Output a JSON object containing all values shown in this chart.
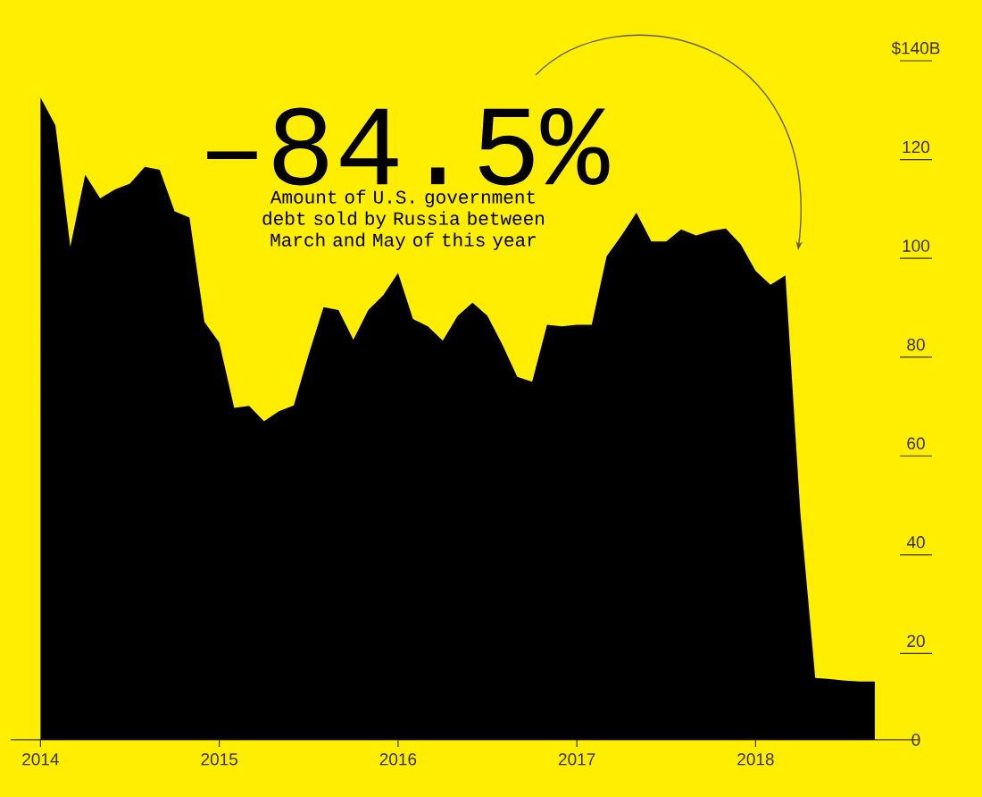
{
  "chart_data": {
    "type": "area",
    "x": [
      "2014-01",
      "2014-02",
      "2014-03",
      "2014-04",
      "2014-05",
      "2014-06",
      "2014-07",
      "2014-08",
      "2014-09",
      "2014-10",
      "2014-11",
      "2014-12",
      "2015-01",
      "2015-02",
      "2015-03",
      "2015-04",
      "2015-05",
      "2015-06",
      "2015-07",
      "2015-08",
      "2015-09",
      "2015-10",
      "2015-11",
      "2015-12",
      "2016-01",
      "2016-02",
      "2016-03",
      "2016-04",
      "2016-05",
      "2016-06",
      "2016-07",
      "2016-08",
      "2016-09",
      "2016-10",
      "2016-11",
      "2016-12",
      "2017-01",
      "2017-02",
      "2017-03",
      "2017-04",
      "2017-05",
      "2017-06",
      "2017-07",
      "2017-08",
      "2017-09",
      "2017-10",
      "2017-11",
      "2017-12",
      "2018-01",
      "2018-02",
      "2018-03",
      "2018-04",
      "2018-05",
      "2018-06",
      "2018-07",
      "2018-08",
      "2018-09"
    ],
    "series": [
      {
        "color": "#000000",
        "values": [
          130,
          124.4,
          99.8,
          114.4,
          109.6,
          111.4,
          112.6,
          116,
          115.4,
          107,
          105.7,
          84.6,
          80.4,
          67.2,
          67.6,
          64.5,
          66.5,
          67.7,
          78,
          87.6,
          87,
          81,
          87,
          90,
          94.5,
          85.2,
          83.7,
          80.8,
          85.8,
          88.5,
          85.8,
          80,
          73.5,
          72.5,
          84,
          83.7,
          84,
          84,
          97.9,
          102.1,
          106.7,
          100.9,
          100.9,
          103.3,
          102.1,
          103,
          103.5,
          100.3,
          94.9,
          92.1,
          94,
          46,
          12.5,
          12.3,
          12,
          11.8,
          11.8
        ]
      }
    ],
    "xlim": [
      "2013-11",
      "2018-12"
    ],
    "xticks": [
      {
        "value": "2014",
        "label": "2014"
      },
      {
        "value": "2015",
        "label": "2015"
      },
      {
        "value": "2016",
        "label": "2016"
      },
      {
        "value": "2017",
        "label": "2017"
      },
      {
        "value": "2018",
        "label": "2018"
      }
    ],
    "ylim": [
      0,
      140
    ],
    "yticks": [
      0,
      20,
      40,
      60,
      80,
      100,
      120,
      {
        "value": 140,
        "label": "$140B"
      }
    ],
    "annotations": [
      "–84.5%",
      "Amount of U.S. government debt sold by Russia between March and May of this year"
    ],
    "grid": false
  }
}
